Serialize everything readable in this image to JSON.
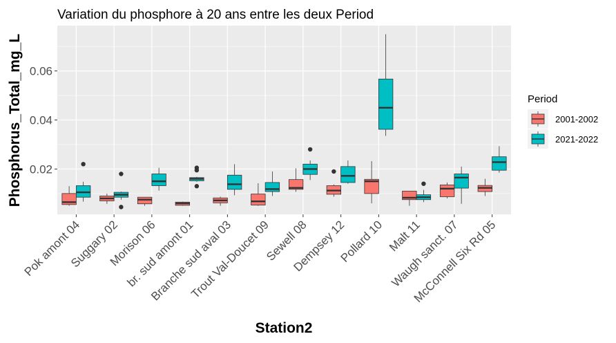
{
  "chart_data": {
    "type": "box",
    "title": "Variation  du phosphore à 20 ans entre les deux Period",
    "xlabel": "Station2",
    "ylabel": "Phosphorus_Total_mg_L",
    "ylim": [
      0.0015,
      0.0785
    ],
    "y_ticks": [
      0.02,
      0.04,
      0.06
    ],
    "y_tick_labels": [
      "0.02",
      "0.04",
      "0.06"
    ],
    "grid": true,
    "legend": {
      "title": "Period",
      "placement": "right"
    },
    "categories": [
      "Pok amont 04",
      "Suggary 02",
      "Morison 06",
      "br. sud amont 01",
      "Branche sud aval 03",
      "Trout Val-Doucet 09",
      "Sewell 08",
      "Dempsey 12",
      "Pollard 10",
      "Malt 11",
      "Waugh sanct. 07",
      "McConnell Six Rd 05"
    ],
    "series": [
      {
        "name": "2001-2002",
        "color": "#F8766D",
        "boxes": [
          {
            "min": 0.005,
            "q1": 0.0055,
            "median": 0.0065,
            "q3": 0.01,
            "max": 0.013,
            "outliers": []
          },
          {
            "min": 0.0058,
            "q1": 0.007,
            "median": 0.008,
            "q3": 0.009,
            "max": 0.01,
            "outliers": []
          },
          {
            "min": 0.005,
            "q1": 0.0058,
            "median": 0.0075,
            "q3": 0.0085,
            "max": 0.0085,
            "outliers": []
          },
          {
            "min": 0.005,
            "q1": 0.0052,
            "median": 0.006,
            "q3": 0.0065,
            "max": 0.0067,
            "outliers": []
          },
          {
            "min": 0.005,
            "q1": 0.0062,
            "median": 0.0072,
            "q3": 0.0082,
            "max": 0.0087,
            "outliers": []
          },
          {
            "min": 0.005,
            "q1": 0.0053,
            "median": 0.0068,
            "q3": 0.0098,
            "max": 0.0142,
            "outliers": []
          },
          {
            "min": 0.0107,
            "q1": 0.0117,
            "median": 0.0123,
            "q3": 0.0157,
            "max": 0.0203,
            "outliers": []
          },
          {
            "min": 0.0087,
            "q1": 0.0097,
            "median": 0.0112,
            "q3": 0.0132,
            "max": 0.0137,
            "outliers": [
              0.019
            ]
          },
          {
            "min": 0.006,
            "q1": 0.01,
            "median": 0.015,
            "q3": 0.0158,
            "max": 0.0232,
            "outliers": []
          },
          {
            "min": 0.005,
            "q1": 0.0075,
            "median": 0.0083,
            "q3": 0.011,
            "max": 0.011,
            "outliers": []
          },
          {
            "min": 0.008,
            "q1": 0.0087,
            "median": 0.012,
            "q3": 0.0135,
            "max": 0.0145,
            "outliers": []
          },
          {
            "min": 0.009,
            "q1": 0.0108,
            "median": 0.0123,
            "q3": 0.0133,
            "max": 0.016,
            "outliers": []
          }
        ]
      },
      {
        "name": "2021-2022",
        "color": "#00BFC4",
        "boxes": [
          {
            "min": 0.0067,
            "q1": 0.0085,
            "median": 0.0105,
            "q3": 0.0132,
            "max": 0.0148,
            "outliers": [
              0.022
            ]
          },
          {
            "min": 0.0075,
            "q1": 0.0085,
            "median": 0.0095,
            "q3": 0.0105,
            "max": 0.0108,
            "outliers": [
              0.018,
              0.0045
            ]
          },
          {
            "min": 0.0112,
            "q1": 0.0132,
            "median": 0.015,
            "q3": 0.018,
            "max": 0.0205,
            "outliers": []
          },
          {
            "min": 0.0148,
            "q1": 0.0152,
            "median": 0.016,
            "q3": 0.0165,
            "max": 0.0168,
            "outliers": [
              0.0205,
              0.0195,
              0.013
            ]
          },
          {
            "min": 0.0093,
            "q1": 0.0117,
            "median": 0.0138,
            "q3": 0.0175,
            "max": 0.022,
            "outliers": []
          },
          {
            "min": 0.009,
            "q1": 0.0108,
            "median": 0.0118,
            "q3": 0.0145,
            "max": 0.019,
            "outliers": []
          },
          {
            "min": 0.0155,
            "q1": 0.0178,
            "median": 0.02,
            "q3": 0.022,
            "max": 0.0235,
            "outliers": [
              0.028
            ]
          },
          {
            "min": 0.014,
            "q1": 0.0145,
            "median": 0.0172,
            "q3": 0.021,
            "max": 0.0235,
            "outliers": []
          },
          {
            "min": 0.0335,
            "q1": 0.0362,
            "median": 0.045,
            "q3": 0.0567,
            "max": 0.075,
            "outliers": []
          },
          {
            "min": 0.0065,
            "q1": 0.0075,
            "median": 0.0085,
            "q3": 0.0095,
            "max": 0.0115,
            "outliers": [
              0.014
            ]
          },
          {
            "min": 0.0058,
            "q1": 0.0122,
            "median": 0.0165,
            "q3": 0.018,
            "max": 0.021,
            "outliers": []
          },
          {
            "min": 0.0185,
            "q1": 0.0195,
            "median": 0.0228,
            "q3": 0.025,
            "max": 0.0293,
            "outliers": []
          }
        ]
      }
    ]
  }
}
